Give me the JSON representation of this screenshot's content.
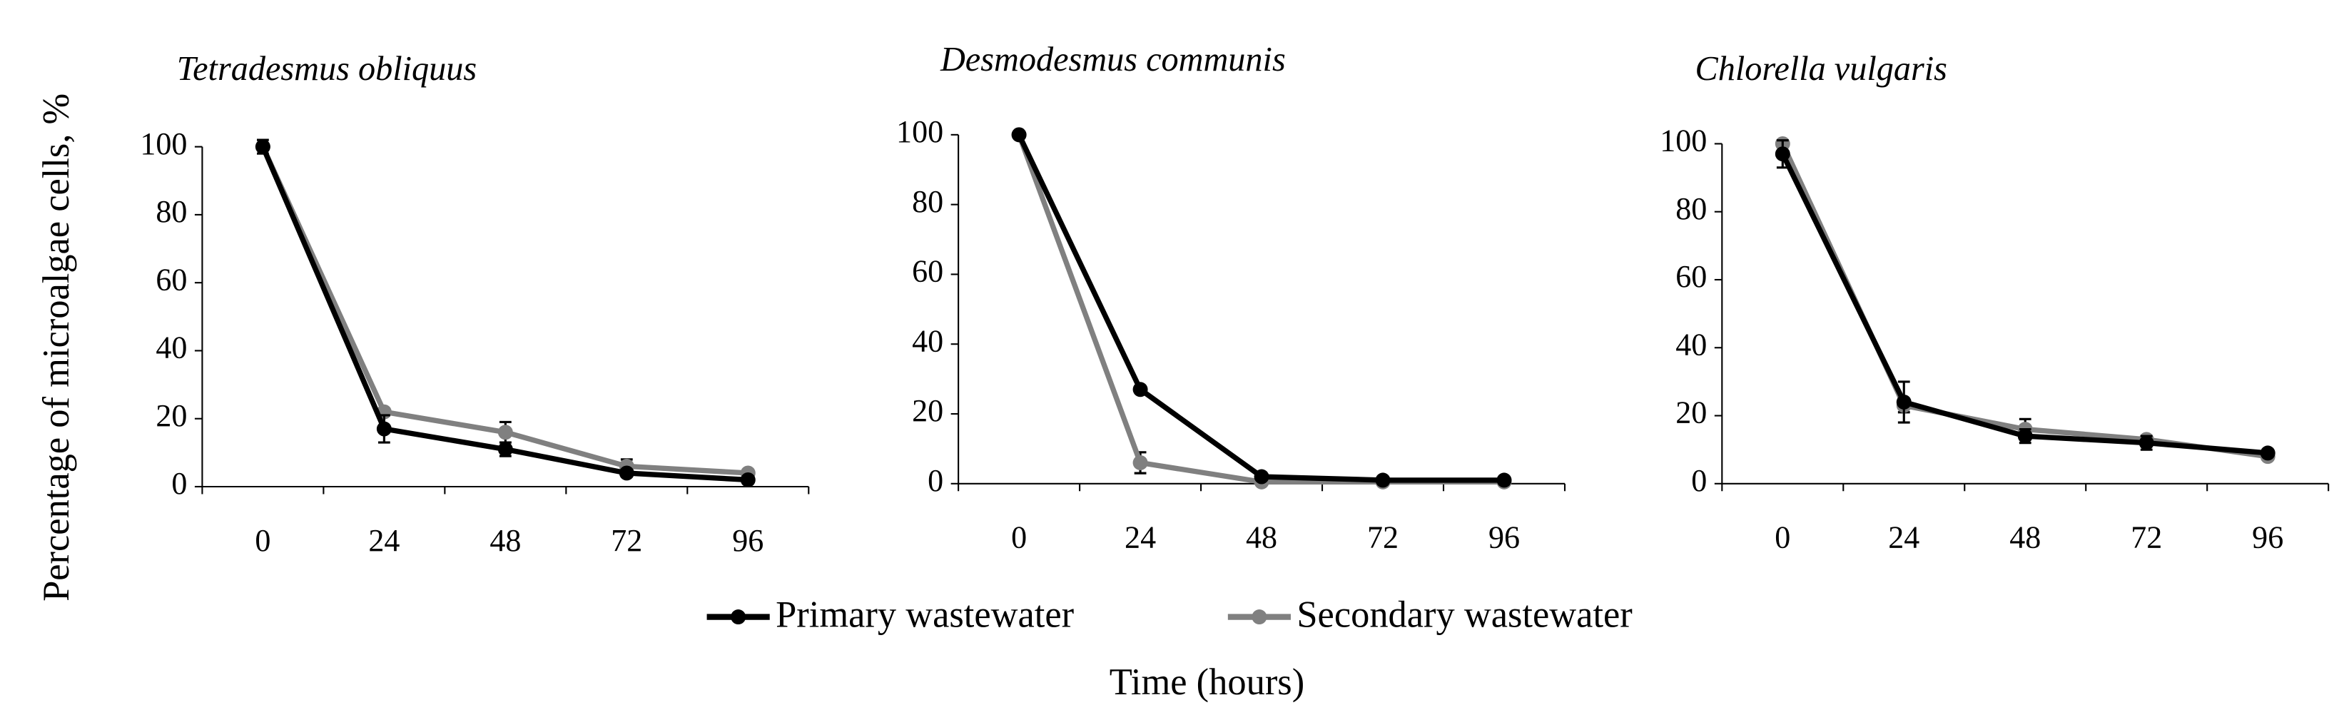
{
  "chart_data": [
    {
      "type": "line",
      "title": "Tetradesmus obliquus",
      "categories": [
        "0",
        "24",
        "48",
        "72",
        "96"
      ],
      "series": [
        {
          "name": "Primary wastewater",
          "color": "#000000",
          "values": [
            100,
            17,
            11,
            4,
            2
          ],
          "errors": [
            2,
            4,
            2,
            1,
            1
          ]
        },
        {
          "name": "Secondary wastewater",
          "color": "#808080",
          "values": [
            100,
            22,
            16,
            6,
            4
          ],
          "errors": [
            1,
            1,
            3,
            2,
            1
          ]
        }
      ],
      "ylim": [
        0,
        100
      ],
      "yticks": [
        0,
        20,
        40,
        60,
        80,
        100
      ]
    },
    {
      "type": "line",
      "title": "Desmodesmus communis",
      "categories": [
        "0",
        "24",
        "48",
        "72",
        "96"
      ],
      "series": [
        {
          "name": "Primary wastewater",
          "color": "#000000",
          "values": [
            100,
            27,
            2,
            1,
            1
          ],
          "errors": [
            0,
            1,
            0,
            0,
            0
          ]
        },
        {
          "name": "Secondary wastewater",
          "color": "#808080",
          "values": [
            100,
            6,
            0.5,
            0.5,
            0.5
          ],
          "errors": [
            0,
            3,
            0,
            0,
            0
          ]
        }
      ],
      "ylim": [
        0,
        100
      ],
      "yticks": [
        0,
        20,
        40,
        60,
        80,
        100
      ]
    },
    {
      "type": "line",
      "title": "Chlorella vulgaris",
      "categories": [
        "0",
        "24",
        "48",
        "72",
        "96"
      ],
      "series": [
        {
          "name": "Primary wastewater",
          "color": "#000000",
          "values": [
            97,
            24,
            14,
            12,
            9
          ],
          "errors": [
            4,
            6,
            2,
            2,
            1
          ]
        },
        {
          "name": "Secondary wastewater",
          "color": "#808080",
          "values": [
            100,
            23,
            16,
            13,
            8
          ],
          "errors": [
            1,
            2,
            3,
            1,
            1
          ]
        }
      ],
      "ylim": [
        0,
        100
      ],
      "yticks": [
        0,
        20,
        40,
        60,
        80,
        100
      ]
    }
  ],
  "y_label": "Percentage of microalgae cells, %",
  "x_label": "Time (hours)"
}
